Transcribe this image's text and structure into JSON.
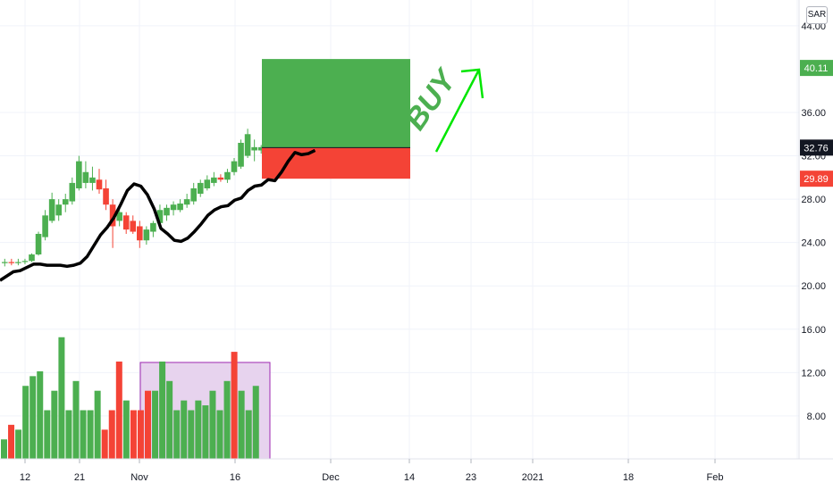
{
  "currency_label": "SAR",
  "colors": {
    "up": "#4caf50",
    "down": "#f44336",
    "ma_line": "#000000",
    "volume_box_fill": "#e7d3ee",
    "volume_box_stroke": "#9c27b0",
    "buy_text": "#4caf50",
    "buy_arrow": "#00e600",
    "grid": "#f0f3fa"
  },
  "annotation": {
    "text": "BUY",
    "target_price": 40.11,
    "entry_price": 32.76,
    "stop_price": 29.89
  },
  "chart_data": {
    "type": "candlestick",
    "y_range": [
      0,
      44
    ],
    "y_ticks": [
      "44.00",
      "36.00",
      "32.00",
      "28.00",
      "24.00",
      "20.00",
      "16.00",
      "12.00",
      "8.00"
    ],
    "x_ticks": [
      "12",
      "21",
      "Nov",
      "16",
      "Dec",
      "14",
      "23",
      "2021",
      "18",
      "Feb"
    ],
    "price_badges": [
      {
        "label": "40.11",
        "value": 40.11,
        "color": "#4caf50"
      },
      {
        "label": "32.76",
        "value": 32.76,
        "color": "#131722"
      },
      {
        "label": "29.89",
        "value": 29.89,
        "color": "#f44336"
      }
    ],
    "candles": [
      {
        "o": 22.1,
        "h": 22.5,
        "l": 21.8,
        "c": 22.2
      },
      {
        "o": 22.2,
        "h": 22.5,
        "l": 21.9,
        "c": 22.1
      },
      {
        "o": 22.1,
        "h": 22.5,
        "l": 21.9,
        "c": 22.2
      },
      {
        "o": 22.2,
        "h": 22.5,
        "l": 22.0,
        "c": 22.3
      },
      {
        "o": 22.3,
        "h": 23.0,
        "l": 22.2,
        "c": 22.9
      },
      {
        "o": 22.9,
        "h": 25.0,
        "l": 22.8,
        "c": 24.8
      },
      {
        "o": 24.5,
        "h": 27.0,
        "l": 24.2,
        "c": 26.5
      },
      {
        "o": 26.0,
        "h": 28.6,
        "l": 25.8,
        "c": 28.0
      },
      {
        "o": 26.5,
        "h": 28.0,
        "l": 26.0,
        "c": 27.5
      },
      {
        "o": 27.5,
        "h": 28.5,
        "l": 26.8,
        "c": 28.0
      },
      {
        "o": 27.8,
        "h": 30.0,
        "l": 27.5,
        "c": 29.5
      },
      {
        "o": 29.0,
        "h": 32.0,
        "l": 28.8,
        "c": 31.5
      },
      {
        "o": 29.5,
        "h": 31.5,
        "l": 29.0,
        "c": 30.5
      },
      {
        "o": 29.5,
        "h": 31.0,
        "l": 28.8,
        "c": 30.0
      },
      {
        "o": 29.8,
        "h": 30.8,
        "l": 28.5,
        "c": 28.9
      },
      {
        "o": 29.0,
        "h": 29.8,
        "l": 27.0,
        "c": 27.5
      },
      {
        "o": 27.5,
        "h": 28.0,
        "l": 23.5,
        "c": 25.5
      },
      {
        "o": 26.0,
        "h": 27.2,
        "l": 25.5,
        "c": 26.8
      },
      {
        "o": 26.5,
        "h": 26.8,
        "l": 24.8,
        "c": 25.2
      },
      {
        "o": 26.0,
        "h": 26.5,
        "l": 24.8,
        "c": 25.0
      },
      {
        "o": 25.5,
        "h": 26.0,
        "l": 23.5,
        "c": 24.2
      },
      {
        "o": 24.2,
        "h": 25.5,
        "l": 23.8,
        "c": 25.2
      },
      {
        "o": 25.0,
        "h": 26.0,
        "l": 24.5,
        "c": 25.8
      },
      {
        "o": 25.8,
        "h": 27.5,
        "l": 25.5,
        "c": 27.0
      },
      {
        "o": 26.5,
        "h": 27.5,
        "l": 26.0,
        "c": 27.2
      },
      {
        "o": 27.0,
        "h": 27.8,
        "l": 26.5,
        "c": 27.5
      },
      {
        "o": 27.0,
        "h": 28.0,
        "l": 26.8,
        "c": 27.6
      },
      {
        "o": 27.5,
        "h": 28.5,
        "l": 27.2,
        "c": 28.0
      },
      {
        "o": 27.8,
        "h": 29.5,
        "l": 27.5,
        "c": 29.0
      },
      {
        "o": 28.5,
        "h": 29.8,
        "l": 28.2,
        "c": 29.5
      },
      {
        "o": 29.0,
        "h": 30.2,
        "l": 28.8,
        "c": 29.8
      },
      {
        "o": 29.5,
        "h": 30.5,
        "l": 29.2,
        "c": 30.0
      },
      {
        "o": 30.0,
        "h": 30.3,
        "l": 29.6,
        "c": 29.8
      },
      {
        "o": 29.8,
        "h": 30.8,
        "l": 29.5,
        "c": 30.5
      },
      {
        "o": 30.5,
        "h": 31.8,
        "l": 30.2,
        "c": 31.5
      },
      {
        "o": 31.0,
        "h": 33.5,
        "l": 30.8,
        "c": 33.2
      },
      {
        "o": 32.0,
        "h": 34.5,
        "l": 31.8,
        "c": 34.0
      },
      {
        "o": 32.5,
        "h": 33.5,
        "l": 31.5,
        "c": 32.8
      },
      {
        "o": 32.5,
        "h": 33.0,
        "l": 32.2,
        "c": 32.8
      },
      {
        "o": 32.8,
        "h": 33.0,
        "l": 32.5,
        "c": 32.76
      }
    ],
    "ma_values": [
      21.0,
      21.4,
      21.8,
      21.9,
      22.2,
      22.5,
      22.5,
      22.4,
      22.4,
      22.4,
      22.3,
      22.4,
      22.6,
      23.2,
      24.2,
      25.2,
      25.9,
      26.8,
      28.0,
      29.3,
      29.9,
      29.7,
      28.9,
      27.6,
      25.8,
      25.3,
      24.7,
      24.6,
      24.9,
      25.5,
      26.2,
      27.0,
      27.5,
      27.8,
      27.9,
      28.4,
      28.6,
      29.3,
      29.7,
      29.8,
      30.3,
      30.2,
      31.0,
      32.0,
      32.8,
      32.6,
      32.7,
      33.0
    ],
    "volumes": [
      2.0,
      3.5,
      3.0,
      7.5,
      8.5,
      9.0,
      5.0,
      7.0,
      12.5,
      5.0,
      8.0,
      5.0,
      5.0,
      7.0,
      3.0,
      5.0,
      10.0,
      6.0,
      5.0,
      5.0,
      7.0,
      7.0,
      10.0,
      8.0,
      5.0,
      6.0,
      5.0,
      6.0,
      5.5,
      7.0,
      5.0,
      8.0,
      11.0,
      7.0,
      5.0,
      7.5
    ]
  }
}
